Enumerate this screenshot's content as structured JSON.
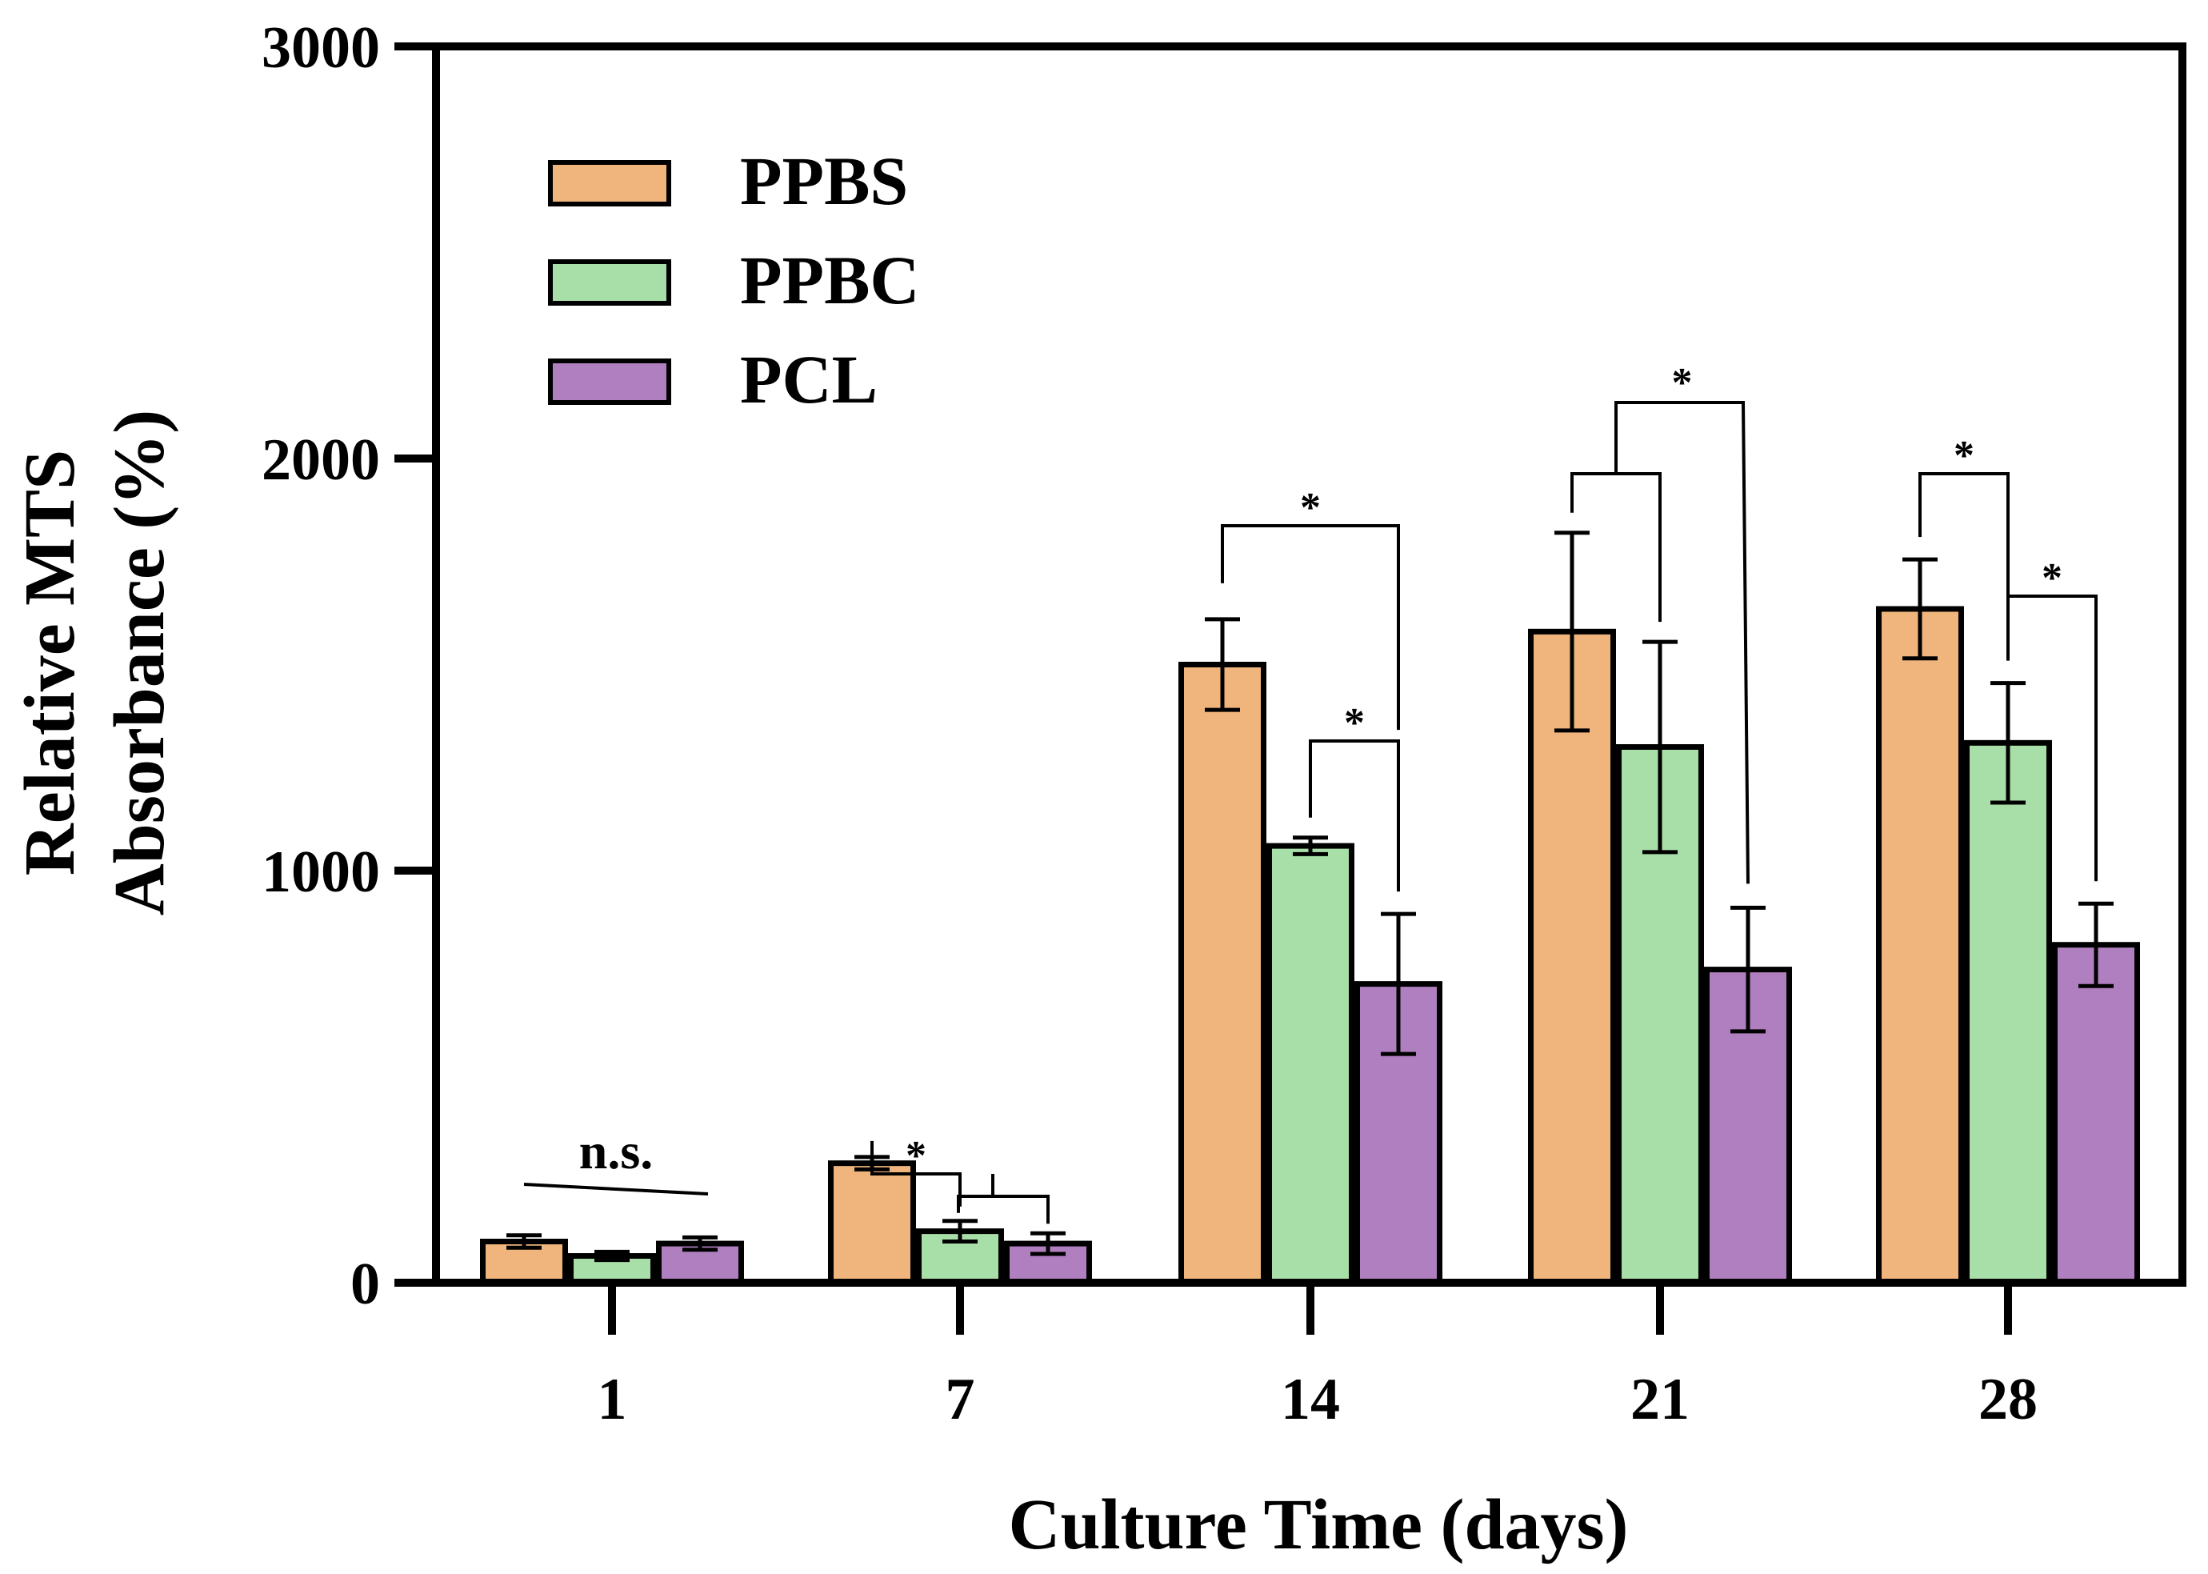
{
  "chart_data": {
    "type": "bar",
    "title": "",
    "xlabel": "Culture Time (days)",
    "ylabel_lines": [
      "Relative MTS",
      "Absorbance (%)"
    ],
    "categories": [
      "1",
      "7",
      "14",
      "21",
      "28"
    ],
    "ylim": [
      0,
      3000
    ],
    "yticks": [
      0,
      1000,
      2000,
      3000
    ],
    "ytick_labels": [
      "0",
      "1000",
      "2000",
      "3000"
    ],
    "legend_position": "top-left",
    "series": [
      {
        "name": "PPBS",
        "color": "#F0B57C",
        "values": [
          100,
          290,
          1500,
          1580,
          1635
        ],
        "errors": [
          15,
          15,
          110,
          240,
          120
        ]
      },
      {
        "name": "PPBC",
        "color": "#A8DFA8",
        "values": [
          65,
          125,
          1060,
          1300,
          1310
        ],
        "errors": [
          10,
          25,
          20,
          255,
          145
        ]
      },
      {
        "name": "PCL",
        "color": "#B07FC0",
        "values": [
          95,
          95,
          725,
          760,
          820
        ],
        "errors": [
          15,
          25,
          170,
          150,
          100
        ]
      }
    ],
    "annotations": [
      {
        "category": "1",
        "text": "n.s."
      },
      {
        "category": "7",
        "text": "*"
      },
      {
        "category": "14",
        "text": "*"
      },
      {
        "category": "14",
        "text": "*"
      },
      {
        "category": "21",
        "text": "*"
      },
      {
        "category": "28",
        "text": "*"
      },
      {
        "category": "28",
        "text": "*"
      }
    ]
  }
}
